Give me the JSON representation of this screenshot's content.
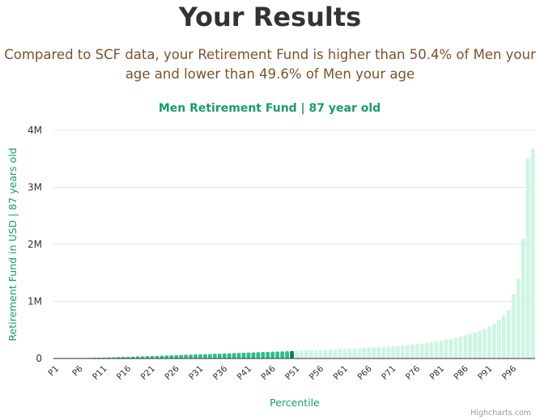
{
  "page": {
    "title": "Your Results",
    "summary": "Compared to SCF data, your Retirement Fund is higher than 50.4% of Men your age and lower than 49.6% of Men your age"
  },
  "chart_data": {
    "type": "bar",
    "title": "Men Retirement Fund | 87 year old",
    "xlabel": "Percentile",
    "ylabel": "Retirement Fund in USD | 87 years old",
    "ylim": [
      0,
      4000000
    ],
    "yticks": [
      {
        "value": 0,
        "label": "0"
      },
      {
        "value": 1000000,
        "label": "1M"
      },
      {
        "value": 2000000,
        "label": "2M"
      },
      {
        "value": 3000000,
        "label": "3M"
      },
      {
        "value": 4000000,
        "label": "4M"
      }
    ],
    "x_tick_labels": [
      "P1",
      "P6",
      "P11",
      "P16",
      "P21",
      "P26",
      "P31",
      "P36",
      "P41",
      "P46",
      "P51",
      "P56",
      "P61",
      "P66",
      "P71",
      "P76",
      "P81",
      "P86",
      "P91",
      "P96"
    ],
    "categories": [
      "P1",
      "P2",
      "P3",
      "P4",
      "P5",
      "P6",
      "P7",
      "P8",
      "P9",
      "P10",
      "P11",
      "P12",
      "P13",
      "P14",
      "P15",
      "P16",
      "P17",
      "P18",
      "P19",
      "P20",
      "P21",
      "P22",
      "P23",
      "P24",
      "P25",
      "P26",
      "P27",
      "P28",
      "P29",
      "P30",
      "P31",
      "P32",
      "P33",
      "P34",
      "P35",
      "P36",
      "P37",
      "P38",
      "P39",
      "P40",
      "P41",
      "P42",
      "P43",
      "P44",
      "P45",
      "P46",
      "P47",
      "P48",
      "P49",
      "P50",
      "P51",
      "P52",
      "P53",
      "P54",
      "P55",
      "P56",
      "P57",
      "P58",
      "P59",
      "P60",
      "P61",
      "P62",
      "P63",
      "P64",
      "P65",
      "P66",
      "P67",
      "P68",
      "P69",
      "P70",
      "P71",
      "P72",
      "P73",
      "P74",
      "P75",
      "P76",
      "P77",
      "P78",
      "P79",
      "P80",
      "P81",
      "P82",
      "P83",
      "P84",
      "P85",
      "P86",
      "P87",
      "P88",
      "P89",
      "P90",
      "P91",
      "P92",
      "P93",
      "P94",
      "P95",
      "P96",
      "P97",
      "P98",
      "P99",
      "P100"
    ],
    "values": [
      0,
      0,
      0,
      2000,
      4000,
      6000,
      8000,
      10000,
      12000,
      14000,
      16000,
      18000,
      20000,
      23000,
      26000,
      29000,
      32000,
      35000,
      38000,
      41000,
      44000,
      47000,
      50000,
      53000,
      56000,
      59000,
      62000,
      65000,
      68000,
      71000,
      74000,
      77000,
      80000,
      83000,
      86000,
      89000,
      92000,
      95000,
      98000,
      101000,
      104000,
      107000,
      110000,
      113000,
      116000,
      119000,
      122000,
      125000,
      128000,
      131000,
      134000,
      137000,
      140000,
      143000,
      146000,
      150000,
      154000,
      158000,
      162000,
      166000,
      170000,
      174000,
      178000,
      182000,
      186000,
      190000,
      195000,
      200000,
      205000,
      210000,
      216000,
      222000,
      228000,
      236000,
      244000,
      252000,
      262000,
      272000,
      284000,
      296000,
      310000,
      326000,
      344000,
      364000,
      386000,
      410000,
      436000,
      462000,
      490000,
      520000,
      560000,
      610000,
      680000,
      760000,
      850000,
      1130000,
      1390000,
      2100000,
      3500000,
      3680000
    ],
    "highlight_index": 49,
    "colors": {
      "below": "#2ebd8a",
      "highlight": "#107a55",
      "above": "#cdf5e2",
      "accent_text": "#1a9b6c"
    },
    "credits": "Highcharts.com"
  }
}
